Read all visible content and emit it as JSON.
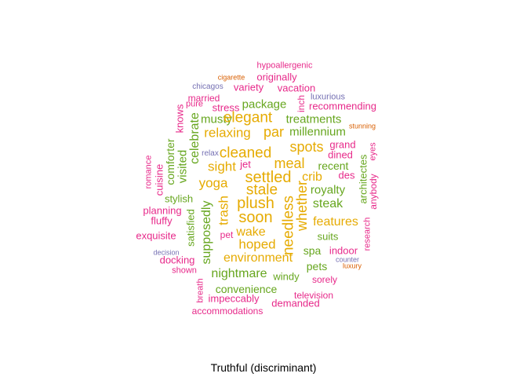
{
  "caption": "Truthful (discriminant)",
  "colors": {
    "green": "#66a61e",
    "orange": "#e6ab02",
    "pink": "#e7298a",
    "purple": "#7570b3",
    "dark_orange": "#d95f02"
  },
  "words": [
    {
      "text": "hypoallergenic",
      "color": "pink"
    },
    {
      "text": "cigarette",
      "color": "dark_orange"
    },
    {
      "text": "originally",
      "color": "pink"
    },
    {
      "text": "chicagos",
      "color": "purple"
    },
    {
      "text": "variety",
      "color": "pink"
    },
    {
      "text": "vacation",
      "color": "pink"
    },
    {
      "text": "married",
      "color": "pink"
    },
    {
      "text": "luxurious",
      "color": "purple"
    },
    {
      "text": "inch",
      "color": "pink"
    },
    {
      "text": "pure",
      "color": "pink"
    },
    {
      "text": "stress",
      "color": "pink"
    },
    {
      "text": "package",
      "color": "green"
    },
    {
      "text": "recommending",
      "color": "pink"
    },
    {
      "text": "knows",
      "color": "pink"
    },
    {
      "text": "musty",
      "color": "green"
    },
    {
      "text": "elegant",
      "color": "orange"
    },
    {
      "text": "treatments",
      "color": "green"
    },
    {
      "text": "stunning",
      "color": "dark_orange"
    },
    {
      "text": "celebrate",
      "color": "green"
    },
    {
      "text": "relaxing",
      "color": "orange"
    },
    {
      "text": "par",
      "color": "orange"
    },
    {
      "text": "millennium",
      "color": "green"
    },
    {
      "text": "comforter",
      "color": "green"
    },
    {
      "text": "spots",
      "color": "orange"
    },
    {
      "text": "grand",
      "color": "pink"
    },
    {
      "text": "eyes",
      "color": "pink"
    },
    {
      "text": "visited",
      "color": "green"
    },
    {
      "text": "relax",
      "color": "purple"
    },
    {
      "text": "cleaned",
      "color": "orange"
    },
    {
      "text": "dined",
      "color": "pink"
    },
    {
      "text": "romance",
      "color": "pink"
    },
    {
      "text": "sight",
      "color": "orange"
    },
    {
      "text": "jet",
      "color": "pink"
    },
    {
      "text": "meal",
      "color": "orange"
    },
    {
      "text": "recent",
      "color": "green"
    },
    {
      "text": "architectes",
      "color": "green"
    },
    {
      "text": "cuisine",
      "color": "pink"
    },
    {
      "text": "settled",
      "color": "orange"
    },
    {
      "text": "crib",
      "color": "orange"
    },
    {
      "text": "des",
      "color": "pink"
    },
    {
      "text": "anybody",
      "color": "pink"
    },
    {
      "text": "yoga",
      "color": "orange"
    },
    {
      "text": "stale",
      "color": "orange"
    },
    {
      "text": "whether",
      "color": "orange"
    },
    {
      "text": "royalty",
      "color": "green"
    },
    {
      "text": "stylish",
      "color": "green"
    },
    {
      "text": "plush",
      "color": "orange"
    },
    {
      "text": "steak",
      "color": "green"
    },
    {
      "text": "planning",
      "color": "pink"
    },
    {
      "text": "supposedly",
      "color": "green"
    },
    {
      "text": "trash",
      "color": "orange"
    },
    {
      "text": "soon",
      "color": "orange"
    },
    {
      "text": "needless",
      "color": "orange"
    },
    {
      "text": "features",
      "color": "orange"
    },
    {
      "text": "fluffy",
      "color": "pink"
    },
    {
      "text": "satisfied",
      "color": "green"
    },
    {
      "text": "research",
      "color": "pink"
    },
    {
      "text": "exquisite",
      "color": "pink"
    },
    {
      "text": "pet",
      "color": "pink"
    },
    {
      "text": "wake",
      "color": "orange"
    },
    {
      "text": "suits",
      "color": "green"
    },
    {
      "text": "hoped",
      "color": "orange"
    },
    {
      "text": "spa",
      "color": "green"
    },
    {
      "text": "indoor",
      "color": "pink"
    },
    {
      "text": "decision",
      "color": "purple"
    },
    {
      "text": "docking",
      "color": "pink"
    },
    {
      "text": "environment",
      "color": "orange"
    },
    {
      "text": "counter",
      "color": "purple"
    },
    {
      "text": "luxury",
      "color": "dark_orange"
    },
    {
      "text": "pets",
      "color": "green"
    },
    {
      "text": "shown",
      "color": "pink"
    },
    {
      "text": "nightmare",
      "color": "green"
    },
    {
      "text": "windy",
      "color": "green"
    },
    {
      "text": "sorely",
      "color": "pink"
    },
    {
      "text": "breath",
      "color": "pink"
    },
    {
      "text": "convenience",
      "color": "green"
    },
    {
      "text": "impeccably",
      "color": "pink"
    },
    {
      "text": "television",
      "color": "pink"
    },
    {
      "text": "demanded",
      "color": "pink"
    },
    {
      "text": "accommodations",
      "color": "pink"
    }
  ]
}
